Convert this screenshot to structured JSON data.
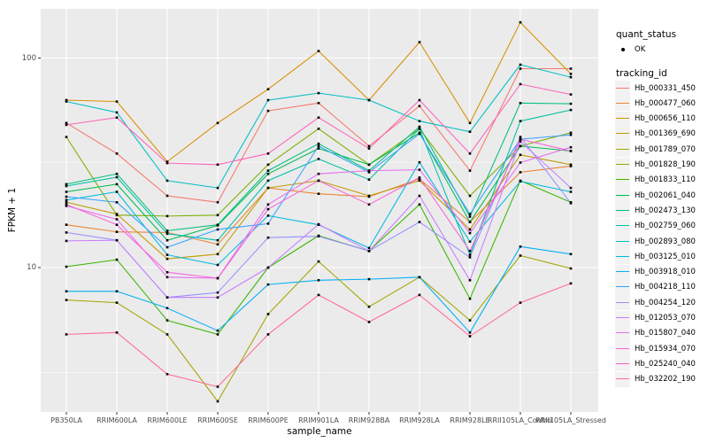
{
  "chart_data": {
    "type": "line",
    "title": "",
    "xlabel": "sample_name",
    "ylabel": "FPKM + 1",
    "y_scale": "log10",
    "ylim": [
      2.0,
      172
    ],
    "y_ticks": [
      10,
      100
    ],
    "y_tick_labels": [
      "10",
      "100"
    ],
    "y_minor_breaks": [
      3.162,
      31.62
    ],
    "grid": "major-and-minor-white-on-grey",
    "legend_position": "right",
    "point_marker": "small-black-point-on-every-value",
    "categories": [
      "PB350LA",
      "RRIM600LA",
      "RRIM600LE",
      "RRIM600SE",
      "RRIM600PE",
      "RRIM901LA",
      "RRIM928BA",
      "RRIM928LA",
      "RRIM928LE",
      "RRII105LA_Control",
      "RRII105LA_Stressed"
    ],
    "series": [
      {
        "name": "Hb_000331_450",
        "color": "#F8766D",
        "values": [
          49,
          35,
          22,
          20.5,
          56,
          61,
          38,
          59,
          29,
          89,
          89
        ]
      },
      {
        "name": "Hb_000477_060",
        "color": "#EA8331",
        "values": [
          16,
          14.8,
          14.7,
          12.9,
          24,
          22.5,
          21.8,
          26.5,
          16.5,
          28.5,
          30.5
        ]
      },
      {
        "name": "Hb_000656_110",
        "color": "#D89000",
        "values": [
          63,
          62,
          32,
          49,
          71,
          108,
          63,
          119,
          49,
          148,
          84
        ]
      },
      {
        "name": "Hb_001369_690",
        "color": "#C09B00",
        "values": [
          20.5,
          18,
          11,
          11.6,
          24,
          26,
          22,
          26,
          15.2,
          34.5,
          31
        ]
      },
      {
        "name": "Hb_001789_070",
        "color": "#A3A500",
        "values": [
          7.0,
          6.8,
          4.8,
          2.3,
          6.0,
          10.7,
          6.5,
          9.0,
          5.6,
          11.4,
          9.9
        ]
      },
      {
        "name": "Hb_001828_190",
        "color": "#7CAE00",
        "values": [
          42,
          17.8,
          17.6,
          17.8,
          31,
          46,
          31,
          46,
          22,
          38,
          44
        ]
      },
      {
        "name": "Hb_001833_110",
        "color": "#39B600",
        "values": [
          10.1,
          10.9,
          5.6,
          4.8,
          10.0,
          14.2,
          12.0,
          20,
          7.1,
          26,
          20.5
        ]
      },
      {
        "name": "Hb_002061_040",
        "color": "#00BB4E",
        "values": [
          23,
          25,
          13.5,
          15.9,
          28,
          37,
          31,
          44,
          16.5,
          38,
          36
        ]
      },
      {
        "name": "Hb_002473_130",
        "color": "#00BF7D",
        "values": [
          25,
          28,
          15,
          16,
          29,
          39,
          29,
          47,
          17.5,
          61,
          60.5
        ]
      },
      {
        "name": "Hb_002759_060",
        "color": "#00C1A3",
        "values": [
          24.5,
          27,
          14.5,
          13.5,
          26,
          33,
          26.3,
          46,
          11.5,
          50,
          56.5
        ]
      },
      {
        "name": "Hb_002893_080",
        "color": "#00BFC4",
        "values": [
          62,
          55,
          26,
          24,
          63,
          68,
          63,
          50,
          44.5,
          93,
          81
        ]
      },
      {
        "name": "Hb_003125_010",
        "color": "#00BAE0",
        "values": [
          21,
          23,
          11.5,
          10.3,
          17.7,
          16,
          12.4,
          31.8,
          13.3,
          25.8,
          23
        ]
      },
      {
        "name": "Hb_003918_010",
        "color": "#00B0F6",
        "values": [
          7.7,
          7.7,
          6.4,
          5.0,
          8.3,
          8.7,
          8.8,
          9.0,
          4.9,
          12.6,
          11.6
        ]
      },
      {
        "name": "Hb_004218_110",
        "color": "#35A2FF",
        "values": [
          21.8,
          20.5,
          12.5,
          15.2,
          16.2,
          38,
          28.5,
          43.5,
          18,
          41,
          43
        ]
      },
      {
        "name": "Hb_004254_120",
        "color": "#9590FF",
        "values": [
          14.7,
          13.5,
          7.2,
          7.6,
          13.9,
          14.1,
          12.0,
          16.5,
          11.2,
          42,
          20.3
        ]
      },
      {
        "name": "Hb_012053_070",
        "color": "#C77CFF",
        "values": [
          13.4,
          13.5,
          7.2,
          7.2,
          10,
          16.1,
          12.0,
          22,
          8.7,
          40,
          24
        ]
      },
      {
        "name": "Hb_015807_040",
        "color": "#E76BF3",
        "values": [
          19.7,
          17,
          9.0,
          8.9,
          20,
          28,
          29,
          29.3,
          14.6,
          31.7,
          37.5
        ]
      },
      {
        "name": "Hb_015934_070",
        "color": "#FA62DB",
        "values": [
          20,
          16,
          9.5,
          8.9,
          19,
          26,
          20,
          26.9,
          12,
          41,
          36
        ]
      },
      {
        "name": "Hb_025240_040",
        "color": "#FF62BC",
        "values": [
          48,
          52,
          31.5,
          31,
          35,
          52,
          37,
          63,
          35,
          75,
          67
        ]
      },
      {
        "name": "Hb_032202_190",
        "color": "#FF6A98",
        "values": [
          4.8,
          4.9,
          3.1,
          2.7,
          4.8,
          7.4,
          5.5,
          7.4,
          4.7,
          6.8,
          8.4
        ]
      }
    ]
  },
  "legend": {
    "quant_status_title": "quant_status",
    "quant_status_items": [
      {
        "label": "OK",
        "symbol": "black-point"
      }
    ],
    "tracking_id_title": "tracking_id"
  },
  "colors": {
    "panel_bg": "#EBEBEB",
    "grid": "#FFFFFF",
    "axis_text": "#4D4D4D",
    "tick_mark": "#333333",
    "point": "#000000",
    "legend_key_bg": "#F2F2F2",
    "page_bg": "#FFFFFF"
  }
}
